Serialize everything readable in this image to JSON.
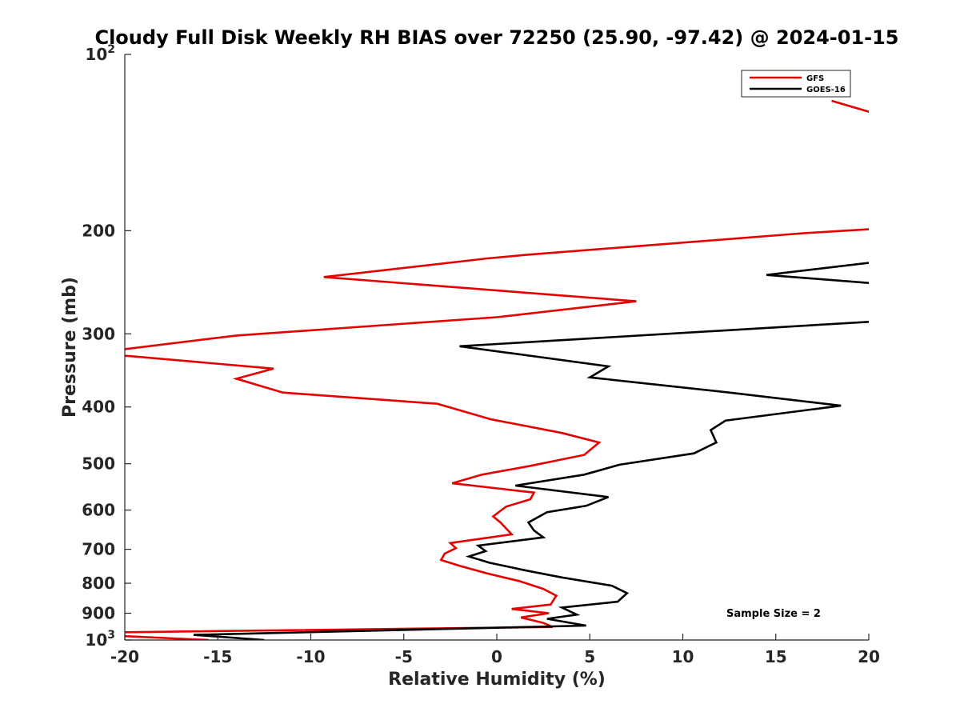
{
  "chart_data": {
    "type": "line",
    "title": "Cloudy Full Disk Weekly RH BIAS over 72250 (25.90, -97.42) @ 2024-01-15",
    "xlabel": "Relative Humidity (%)",
    "ylabel": "Pressure (mb)",
    "xlim": [
      -20,
      20
    ],
    "ylim": [
      1000,
      100
    ],
    "yscale": "log",
    "y_reversed": true,
    "grid": false,
    "legend_position": "top-right",
    "x_ticks": [
      -20,
      -15,
      -10,
      -5,
      0,
      5,
      10,
      15,
      20
    ],
    "x_tick_labels": [
      "-20",
      "-15",
      "-10",
      "-5",
      "0",
      "5",
      "10",
      "15",
      "20"
    ],
    "y_ticks": [
      100,
      200,
      300,
      400,
      500,
      600,
      700,
      800,
      900,
      1000
    ],
    "y_tick_labels": [
      {
        "base": "10",
        "exp": "2"
      },
      {
        "base": "200",
        "exp": ""
      },
      {
        "base": "300",
        "exp": ""
      },
      {
        "base": "400",
        "exp": ""
      },
      {
        "base": "500",
        "exp": ""
      },
      {
        "base": "600",
        "exp": ""
      },
      {
        "base": "700",
        "exp": ""
      },
      {
        "base": "800",
        "exp": ""
      },
      {
        "base": "900",
        "exp": ""
      },
      {
        "base": "10",
        "exp": "3"
      }
    ],
    "annotation": "Sample Size = 2",
    "series": [
      {
        "name": "GFS",
        "color": "#e60000",
        "segments": [
          [
            [
              18,
              120
            ],
            [
              21,
              128
            ]
          ],
          [
            [
              21,
              198
            ],
            [
              16.5,
              202
            ],
            [
              1.5,
              220
            ],
            [
              -0.5,
              223
            ],
            [
              -9.3,
              240
            ],
            [
              7.5,
              264
            ],
            [
              0,
              281
            ],
            [
              -14,
              302
            ],
            [
              -20.5,
              320
            ]
          ],
          [
            [
              -21,
              325
            ],
            [
              -19.5,
              328
            ],
            [
              -12,
              344
            ],
            [
              -14,
              358
            ],
            [
              -11.5,
              378
            ],
            [
              -3.2,
              395
            ],
            [
              -0.3,
              420
            ],
            [
              3.5,
              443
            ],
            [
              5.5,
              460
            ],
            [
              4.7,
              483
            ],
            [
              1.7,
              505
            ],
            [
              -0.8,
              522
            ],
            [
              -2.4,
              540
            ],
            [
              2,
              560
            ],
            [
              1.8,
              575
            ],
            [
              0.5,
              592
            ],
            [
              -0.2,
              615
            ],
            [
              0.2,
              630
            ],
            [
              0.8,
              660
            ],
            [
              -2.5,
              683
            ],
            [
              -2.2,
              697
            ],
            [
              -2.8,
              712
            ],
            [
              -3.0,
              730
            ],
            [
              -2.0,
              747
            ],
            [
              -0.5,
              770
            ],
            [
              1.2,
              793
            ],
            [
              2.5,
              818
            ],
            [
              3.2,
              840
            ],
            [
              2.9,
              870
            ],
            [
              0.8,
              885
            ],
            [
              2.8,
              900
            ],
            [
              1.3,
              915
            ],
            [
              2.5,
              935
            ],
            [
              3,
              950
            ],
            [
              -20,
              970
            ],
            [
              -21,
              975
            ],
            [
              -20,
              985
            ],
            [
              -15.5,
              1000
            ]
          ]
        ]
      },
      {
        "name": "GOES-16",
        "color": "#000000",
        "segments": [
          [
            [
              21,
              225
            ],
            [
              14.5,
              238
            ],
            [
              21,
              247
            ]
          ],
          [
            [
              21,
              285
            ],
            [
              -2,
              315
            ],
            [
              6,
              341
            ],
            [
              5,
              356
            ],
            [
              12.5,
              378
            ],
            [
              18.5,
              398
            ],
            [
              12.3,
              422
            ],
            [
              11.5,
              438
            ],
            [
              11.8,
              460
            ],
            [
              10.6,
              480
            ],
            [
              6.6,
              502
            ],
            [
              4.7,
              522
            ],
            [
              1,
              545
            ],
            [
              6,
              570
            ],
            [
              4.8,
              590
            ],
            [
              2.7,
              605
            ],
            [
              1.7,
              630
            ],
            [
              2.0,
              650
            ],
            [
              2.5,
              668
            ],
            [
              -1.0,
              690
            ],
            [
              -0.6,
              705
            ],
            [
              -1.5,
              720
            ],
            [
              -0.4,
              738
            ],
            [
              1.5,
              760
            ],
            [
              3.5,
              782
            ],
            [
              6.2,
              808
            ],
            [
              7,
              832
            ],
            [
              6.5,
              860
            ],
            [
              3.5,
              880
            ],
            [
              4.3,
              905
            ],
            [
              2.7,
              920
            ],
            [
              4.8,
              945
            ],
            [
              -16.3,
              980
            ],
            [
              -12.5,
              1000
            ]
          ]
        ]
      }
    ]
  }
}
